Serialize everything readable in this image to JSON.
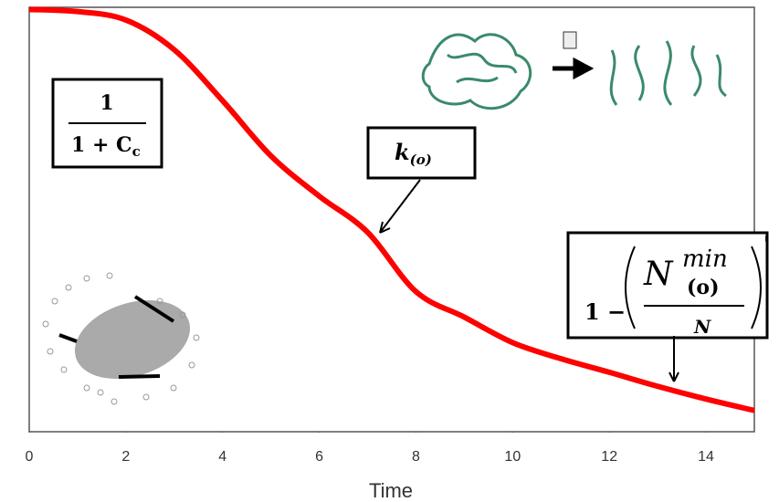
{
  "chart_data": {
    "type": "line",
    "x_label": "Time",
    "x": [
      0,
      1,
      2,
      3,
      4,
      5,
      6,
      7,
      8,
      9,
      10,
      11,
      12,
      13,
      14,
      15
    ],
    "series": [
      {
        "color": "#ff0000",
        "values": [
          0.995,
          0.99,
          0.97,
          0.9,
          0.78,
          0.65,
          0.555,
          0.47,
          0.33,
          0.27,
          0.21,
          0.172,
          0.14,
          0.107,
          0.077,
          0.05
        ]
      }
    ],
    "xlim": [
      0,
      15
    ],
    "xticks": [
      0,
      2,
      4,
      6,
      8,
      10,
      12,
      14
    ],
    "ylim": [
      0,
      1
    ],
    "annotations": {
      "box1": {
        "numerator": "1",
        "denominator": "1 + C",
        "denominator_subscript": "c"
      },
      "box2": {
        "base": "k",
        "subscript": "(o)"
      },
      "box3": {
        "lead": "1 −",
        "base": "N",
        "superscript": "min",
        "subscript": "(o)",
        "denominator": "N",
        "exponent": "'"
      }
    }
  }
}
